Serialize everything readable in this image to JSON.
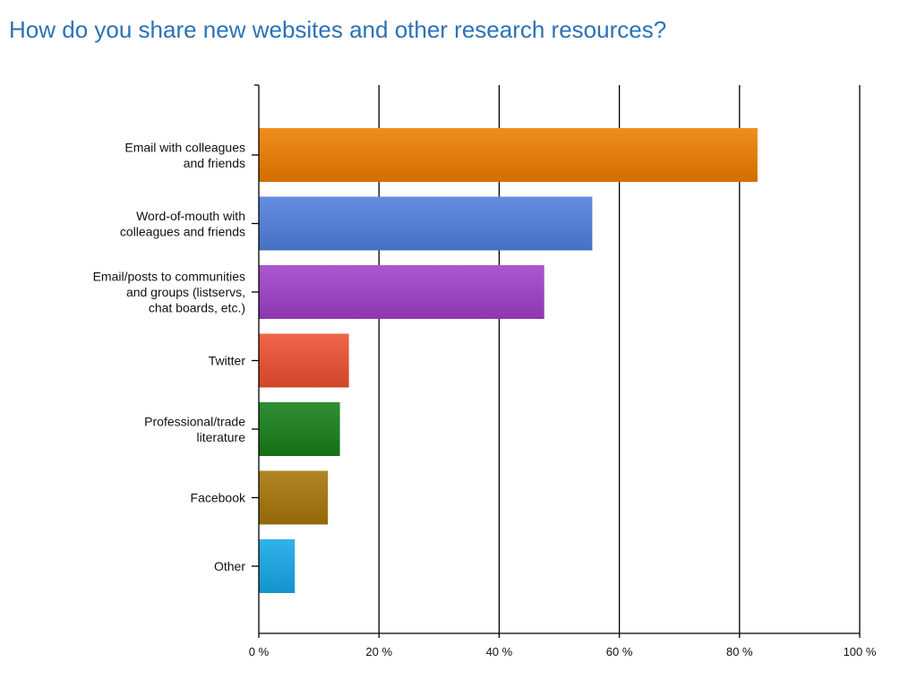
{
  "title": "How do you share new websites and other research resources?",
  "chart_data": {
    "type": "bar",
    "orientation": "horizontal",
    "title": "How do you share new websites and other research resources?",
    "categories": [
      [
        "Email with colleagues",
        "and friends"
      ],
      [
        "Word-of-mouth with",
        "colleagues and friends"
      ],
      [
        "Email/posts to communities",
        "and groups (listservs,",
        "chat boards, etc.)"
      ],
      [
        "Twitter"
      ],
      [
        "Professional/trade",
        "literature"
      ],
      [
        "Facebook"
      ],
      [
        "Other"
      ]
    ],
    "values": [
      83,
      55.5,
      47.5,
      15,
      13.5,
      11.5,
      6
    ],
    "colors": [
      "#ee7d00",
      "#4f7fdd",
      "#a040c8",
      "#ee5030",
      "#167f18",
      "#a77608",
      "#16a8e8"
    ],
    "xlim": [
      0,
      100
    ],
    "xticks": [
      0,
      20,
      40,
      60,
      80,
      100
    ],
    "xtick_labels": [
      "0 %",
      "20 %",
      "40 %",
      "60 %",
      "80 %",
      "100 %"
    ],
    "grid": true,
    "xlabel": "",
    "ylabel": ""
  }
}
